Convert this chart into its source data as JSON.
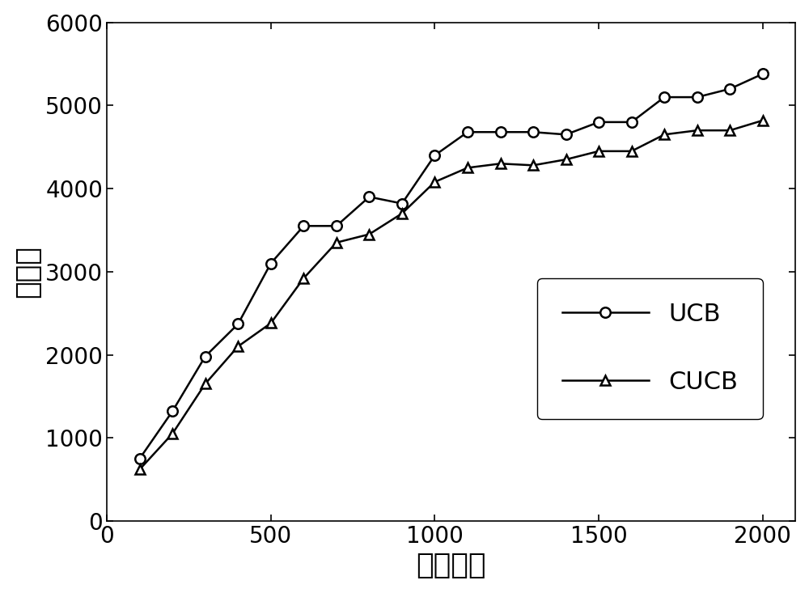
{
  "ucb_x": [
    100,
    200,
    300,
    400,
    500,
    600,
    700,
    800,
    900,
    1000,
    1100,
    1200,
    1300,
    1400,
    1500,
    1600,
    1700,
    1800,
    1900,
    2000
  ],
  "ucb_y": [
    750,
    1320,
    1980,
    2370,
    3100,
    3550,
    3550,
    3900,
    3820,
    4400,
    4680,
    4680,
    4680,
    4650,
    4800,
    4800,
    5100,
    5100,
    5200,
    5380
  ],
  "cucb_x": [
    100,
    200,
    300,
    400,
    500,
    600,
    700,
    800,
    900,
    1000,
    1100,
    1200,
    1300,
    1400,
    1500,
    1600,
    1700,
    1800,
    1900,
    2000
  ],
  "cucb_y": [
    620,
    1050,
    1650,
    2100,
    2380,
    2920,
    3350,
    3450,
    3700,
    4080,
    4250,
    4300,
    4280,
    4350,
    4450,
    4450,
    4650,
    4700,
    4700,
    4820
  ],
  "xlabel": "迭代次数",
  "ylabel": "后悔値",
  "xlim": [
    0,
    2100
  ],
  "ylim": [
    0,
    6000
  ],
  "xticks": [
    0,
    500,
    1000,
    1500,
    2000
  ],
  "yticks": [
    0,
    1000,
    2000,
    3000,
    4000,
    5000,
    6000
  ],
  "legend_labels": [
    "UCB",
    "CUCB"
  ],
  "line_color": "#000000",
  "background_color": "#ffffff",
  "marker_ucb": "o",
  "marker_cucb": "^",
  "linewidth": 1.8,
  "markersize": 9,
  "xlabel_fontsize": 26,
  "ylabel_fontsize": 26,
  "tick_fontsize": 20,
  "legend_fontsize": 22
}
